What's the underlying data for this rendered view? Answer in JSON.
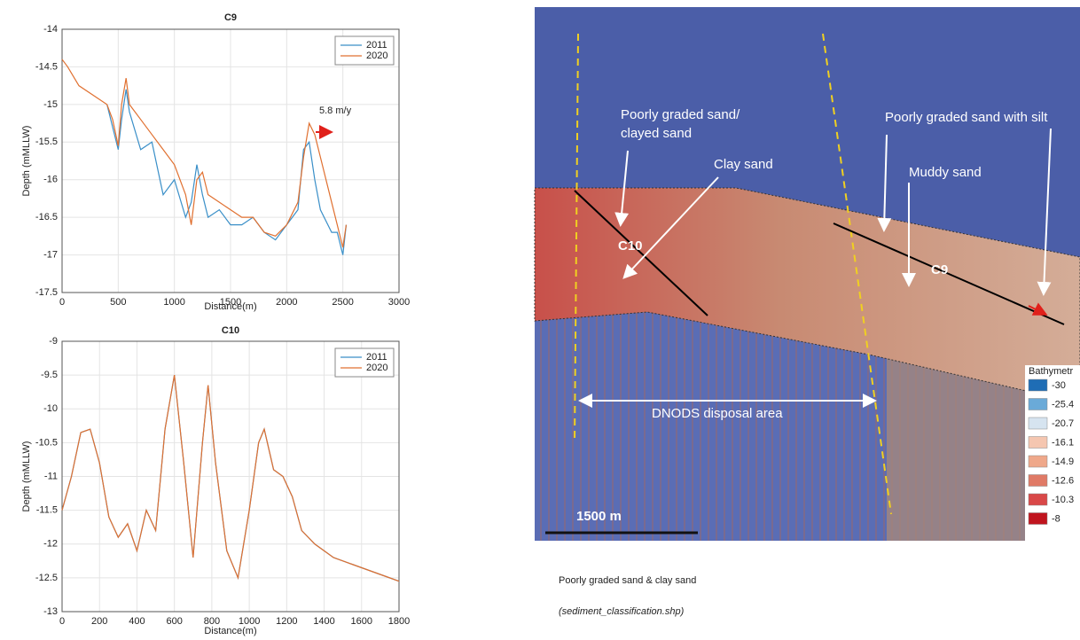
{
  "chart_data": [
    {
      "type": "line",
      "title": "C9",
      "x_label": "Distance(m)",
      "y_label": "Depth (mMLLW)",
      "x": [
        0,
        50,
        150,
        300,
        400,
        450,
        500,
        530,
        570,
        600,
        700,
        800,
        900,
        1000,
        1100,
        1150,
        1200,
        1250,
        1300,
        1400,
        1500,
        1600,
        1700,
        1800,
        1900,
        2000,
        2100,
        2150,
        2200,
        2250,
        2300,
        2400,
        2450,
        2500,
        2530
      ],
      "series": [
        {
          "name": "2011",
          "color": "#3a8fc8",
          "values": [
            null,
            null,
            null,
            null,
            -15.0,
            -15.3,
            -15.6,
            -15.2,
            -14.8,
            -15.1,
            -15.6,
            -15.5,
            -16.2,
            -16.0,
            -16.5,
            -16.3,
            -15.8,
            -16.2,
            -16.5,
            -16.4,
            -16.6,
            -16.6,
            -16.5,
            -16.7,
            -16.8,
            -16.6,
            -16.4,
            -15.6,
            -15.5,
            -16.0,
            -16.4,
            -16.7,
            -16.7,
            -17.0,
            -16.6
          ]
        },
        {
          "name": "2020",
          "color": "#e07030",
          "values": [
            -14.4,
            -14.5,
            -14.75,
            -14.9,
            -15.0,
            -15.2,
            -15.55,
            -15.0,
            -14.65,
            -15.0,
            -15.2,
            -15.4,
            -15.6,
            -15.8,
            -16.2,
            -16.6,
            -16.0,
            -15.9,
            -16.2,
            -16.3,
            -16.4,
            -16.5,
            -16.5,
            -16.7,
            -16.75,
            -16.6,
            -16.3,
            -15.7,
            -15.25,
            -15.4,
            -15.7,
            -16.3,
            -16.6,
            -16.9,
            -16.6
          ]
        }
      ],
      "annotation": "5.8 m/y",
      "xlim": [
        0,
        3000
      ],
      "xticks": [
        0,
        500,
        1000,
        1500,
        2000,
        2500,
        3000
      ],
      "ylim": [
        -17.5,
        -14
      ],
      "yticks": [
        -17.5,
        -17,
        -16.5,
        -16,
        -15.5,
        -15,
        -14.5,
        -14
      ],
      "grid": true,
      "legend": "upper right"
    },
    {
      "type": "line",
      "title": "C10",
      "x_label": "Distance(m)",
      "y_label": "Depth (mMLLW)",
      "x": [
        0,
        50,
        100,
        150,
        200,
        250,
        300,
        350,
        400,
        450,
        500,
        550,
        600,
        650,
        700,
        750,
        780,
        820,
        880,
        940,
        1000,
        1050,
        1080,
        1130,
        1180,
        1230,
        1280,
        1350,
        1450,
        1550,
        1650,
        1750,
        1800
      ],
      "series": [
        {
          "name": "2011",
          "color": "#3a8fc8",
          "values": [
            -11.5,
            -11.0,
            -10.35,
            -10.3,
            -10.8,
            -11.6,
            -11.9,
            -11.7,
            -12.1,
            -11.5,
            -11.8,
            -10.3,
            -9.5,
            -10.8,
            -12.2,
            -10.5,
            -9.65,
            -10.8,
            -12.1,
            -12.5,
            -11.5,
            -10.5,
            -10.3,
            -10.9,
            -11.0,
            -11.3,
            -11.8,
            -12.0,
            -12.2,
            -12.3,
            -12.4,
            -12.5,
            -12.55
          ]
        },
        {
          "name": "2020",
          "color": "#e07030",
          "values": [
            -11.5,
            -11.0,
            -10.35,
            -10.3,
            -10.8,
            -11.6,
            -11.9,
            -11.7,
            -12.1,
            -11.5,
            -11.8,
            -10.3,
            -9.5,
            -10.8,
            -12.2,
            -10.5,
            -9.65,
            -10.8,
            -12.1,
            -12.5,
            -11.5,
            -10.5,
            -10.3,
            -10.9,
            -11.0,
            -11.3,
            -11.8,
            -12.0,
            -12.2,
            -12.3,
            -12.4,
            -12.5,
            -12.55
          ]
        }
      ],
      "xlim": [
        0,
        1800
      ],
      "xticks": [
        0,
        200,
        400,
        600,
        800,
        1000,
        1200,
        1400,
        1600,
        1800
      ],
      "ylim": [
        -13,
        -9
      ],
      "yticks": [
        -13,
        -12.5,
        -12,
        -11.5,
        -11,
        -10.5,
        -10,
        -9.5,
        -9
      ],
      "grid": true,
      "legend": "upper right"
    }
  ],
  "map": {
    "labels": [
      "Poorly graded sand/",
      "clayed sand",
      "Clay sand",
      "Poorly graded sand with silt",
      "Muddy sand",
      "C10",
      "C9",
      "DNODS disposal area",
      "1500 m"
    ],
    "legend_title": "Bathymetr",
    "legend": [
      {
        "value": -30,
        "color": "#1f6db5"
      },
      {
        "value": -25.4,
        "color": "#6aaad8"
      },
      {
        "value": -20.7,
        "color": "#d6e4f0"
      },
      {
        "value": -16.1,
        "color": "#f5c6b0"
      },
      {
        "value": -14.9,
        "color": "#efa88a"
      },
      {
        "value": -12.6,
        "color": "#e07a66"
      },
      {
        "value": -10.3,
        "color": "#d94848"
      },
      {
        "value": -8,
        "color": "#c0141e"
      }
    ]
  },
  "caption": {
    "title": "Poorly graded sand & clay sand",
    "subtitle": "(sediment_classification.shp)"
  }
}
